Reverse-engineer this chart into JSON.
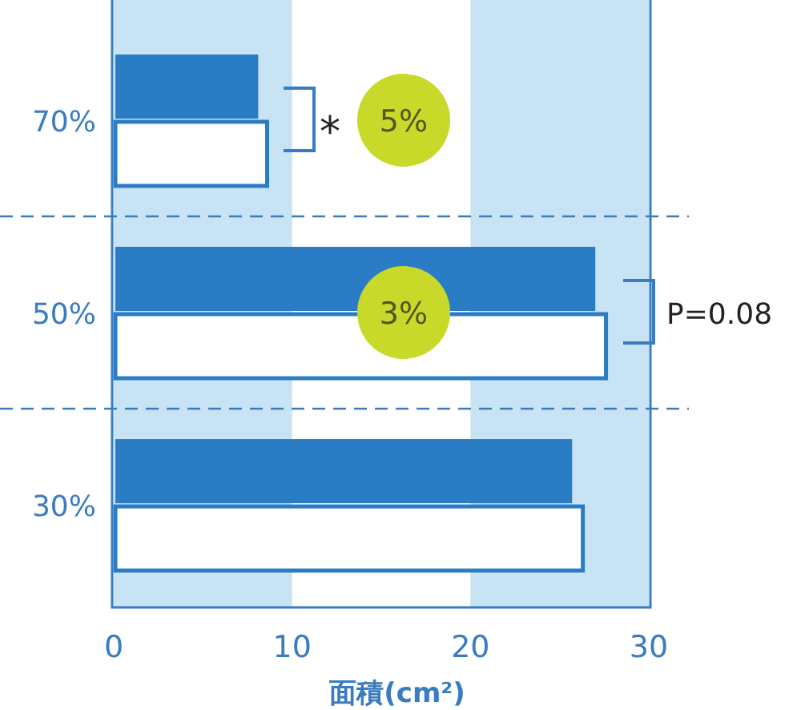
{
  "chart_data": {
    "type": "bar",
    "orientation": "horizontal",
    "xlabel": "面積(cm²)",
    "categories": [
      "70%",
      "50%",
      "30%"
    ],
    "series": [
      {
        "color": "#2a7dc5",
        "values": [
          8.1,
          27.0,
          25.7
        ]
      },
      {
        "color": "#ffffff",
        "values": [
          8.6,
          27.6,
          26.3
        ]
      }
    ],
    "xlim": [
      0,
      30
    ],
    "xticks": [
      0,
      10,
      20,
      30
    ],
    "bands": [
      {
        "axis": "x",
        "from": 0,
        "to": 10,
        "color": "#c7e3f4"
      },
      {
        "axis": "x",
        "from": 20,
        "to": 30,
        "color": "#c7e3f4"
      }
    ],
    "annotations": [
      "*",
      "5%",
      "3%",
      "P=0.08"
    ]
  }
}
